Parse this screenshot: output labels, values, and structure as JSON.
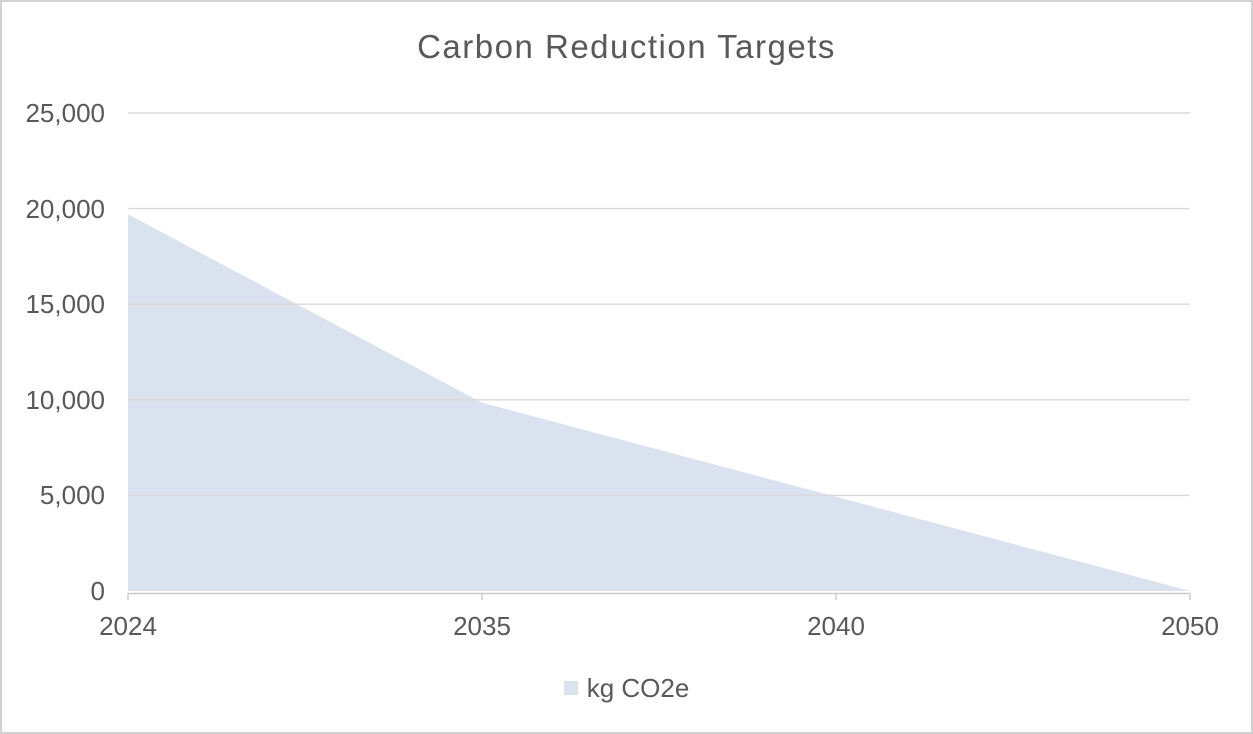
{
  "chart_data": {
    "type": "area",
    "title": "Carbon Reduction Targets",
    "categories": [
      "2024",
      "2035",
      "2040",
      "2050"
    ],
    "series": [
      {
        "name": "kg CO2e",
        "values": [
          19700,
          9850,
          4925,
          0
        ]
      }
    ],
    "xlabel": "",
    "ylabel": "",
    "ylim": [
      0,
      25000
    ],
    "ytick_step": 5000,
    "ytick_labels": [
      "0",
      "5,000",
      "10,000",
      "15,000",
      "20,000",
      "25,000"
    ],
    "grid": true,
    "gridlines_over_fill": true,
    "legend_position": "bottom",
    "legend_label": "kg CO2e",
    "colors": {
      "area_fill": "#D9E2EE",
      "gridline": "#D9D9D9",
      "axis_line": "#C9C9C9",
      "text": "#595959",
      "chart_border": "#D2D2D2",
      "background": "#FFFFFF"
    }
  }
}
